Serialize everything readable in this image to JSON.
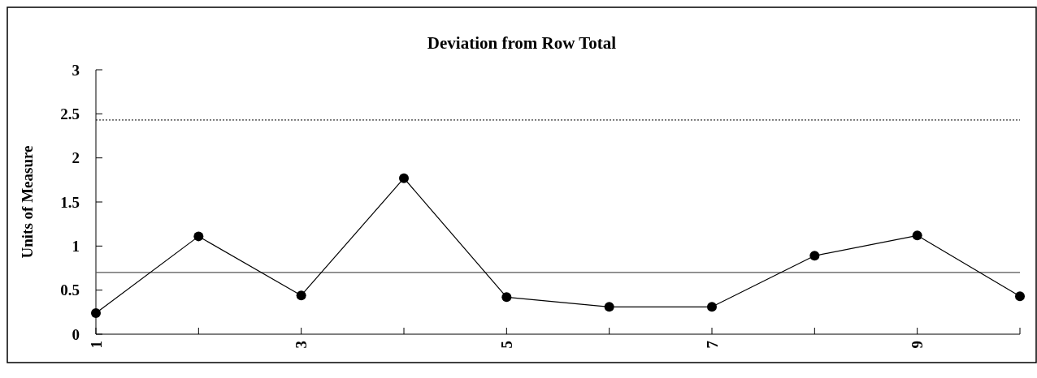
{
  "chart_data": {
    "type": "line",
    "title": "Deviation from Row Total",
    "ylabel": "Units of Measure",
    "x": [
      1,
      2,
      3,
      4,
      5,
      6,
      7,
      8,
      9,
      10
    ],
    "series": [
      {
        "color": "#000000",
        "values": [
          0.24,
          1.11,
          0.44,
          1.77,
          0.42,
          0.31,
          0.31,
          0.89,
          1.12,
          0.43
        ]
      }
    ],
    "xlim": [
      1,
      10
    ],
    "xticks": [
      1,
      {
        "value": 2,
        "label": null
      },
      3,
      {
        "value": 4,
        "label": null
      },
      5,
      {
        "value": 6,
        "label": null
      },
      7,
      {
        "value": 8,
        "label": null
      },
      9,
      {
        "value": 10,
        "label": null
      }
    ],
    "ylim": [
      0,
      3
    ],
    "yticks": [
      0,
      0.5,
      1,
      1.5,
      2,
      2.5,
      3
    ],
    "ref_lines": [
      {
        "axis": "y",
        "value": 2.43,
        "label": null,
        "line_style": "dotted",
        "color": "#000000"
      },
      {
        "axis": "y",
        "value": 0.7,
        "label": null,
        "line_style": "solid",
        "color": "#555555"
      }
    ],
    "marker": "circle",
    "line_style": "solid",
    "grid": false
  }
}
